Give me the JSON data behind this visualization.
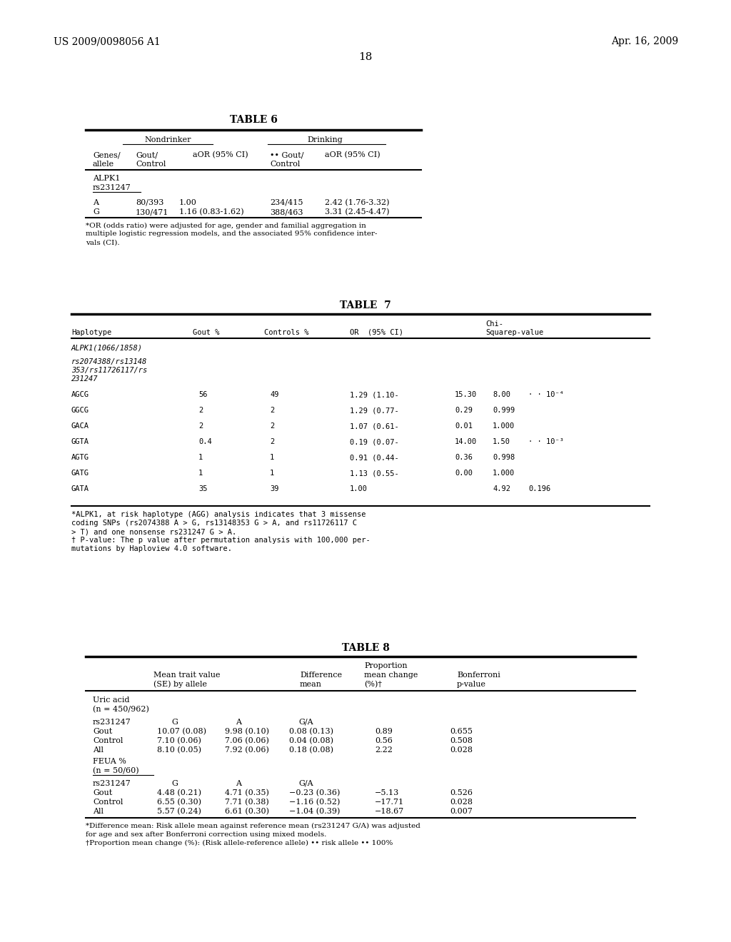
{
  "header_left": "US 2009/0098056 A1",
  "header_right": "Apr. 16, 2009",
  "page_number": "18",
  "background_color": "#ffffff",
  "table6_title": "TABLE 6",
  "table7_title": "TABLE  7",
  "table8_title": "TABLE 8",
  "table6": {
    "footnote": "*OR (odds ratio) were adjusted for age, gender and familial aggregation in\nmultiple logistic regression models, and the associated 95% confidence inter-\nvals (CI)."
  },
  "table7": {
    "footnote1": "*ALPK1, at risk haplotype (AGG) analysis indicates that 3 missense\ncoding SNPs (rs2074388 A > G, rs13148353 G > A, and rs11726117 C\n> T) and one nonsense rs231247 G > A.",
    "footnote2": "† P-value: The p value after permutation analysis with 100,000 per-\nmutations by Haploview 4.0 software."
  },
  "table8": {
    "footnote1": "*Difference mean: Risk allele mean against reference mean (rs231247 G/A) was adjusted\nfor age and sex after Bonferroni correction using mixed models.",
    "footnote2": "†Proportion mean change (%): (Risk allele-reference allele) •• risk allele •• 100%"
  }
}
